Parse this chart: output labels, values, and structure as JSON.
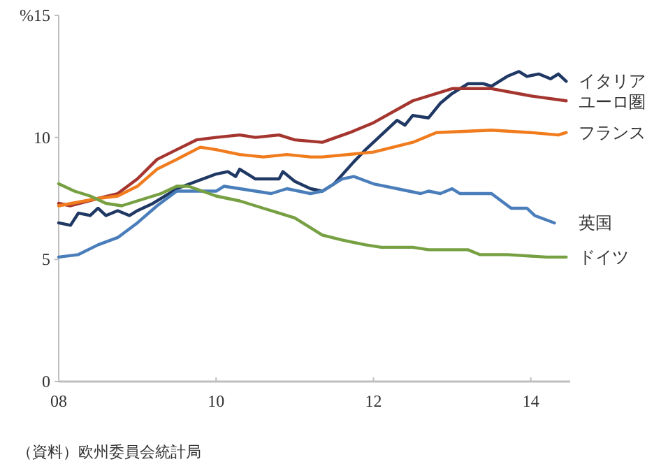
{
  "chart_data": {
    "type": "line",
    "xlim": [
      2008,
      2014.5
    ],
    "ylim": [
      0,
      15
    ],
    "xticks": [
      {
        "value": 2008,
        "label": "08"
      },
      {
        "value": 2010,
        "label": "10"
      },
      {
        "value": 2012,
        "label": "12"
      },
      {
        "value": 2014,
        "label": "14"
      }
    ],
    "yticks": [
      0,
      5,
      10,
      {
        "value": 15,
        "label": "%15"
      }
    ],
    "series": [
      {
        "name": "イタリア",
        "color": "#1f3864",
        "x": [
          2008,
          2008.15,
          2008.25,
          2008.4,
          2008.5,
          2008.6,
          2008.75,
          2008.9,
          2009.0,
          2009.2,
          2009.4,
          2009.5,
          2009.75,
          2010,
          2010.15,
          2010.25,
          2010.3,
          2010.5,
          2010.8,
          2010.85,
          2011,
          2011.2,
          2011.35,
          2011.5,
          2011.75,
          2011.9,
          2012.1,
          2012.3,
          2012.4,
          2012.5,
          2012.7,
          2012.85,
          2013,
          2013.2,
          2013.4,
          2013.5,
          2013.7,
          2013.85,
          2013.95,
          2014.1,
          2014.25,
          2014.35,
          2014.45
        ],
        "values": [
          6.5,
          6.4,
          6.9,
          6.8,
          7.1,
          6.8,
          7.0,
          6.8,
          7.0,
          7.3,
          7.7,
          7.9,
          8.2,
          8.5,
          8.6,
          8.4,
          8.7,
          8.3,
          8.3,
          8.6,
          8.2,
          7.9,
          7.8,
          8.1,
          9.0,
          9.5,
          10.1,
          10.7,
          10.5,
          10.9,
          10.8,
          11.4,
          11.8,
          12.2,
          12.2,
          12.1,
          12.5,
          12.7,
          12.5,
          12.6,
          12.4,
          12.6,
          12.3
        ]
      },
      {
        "name": "ユーロ圏",
        "color": "#a5352f",
        "x": [
          2008,
          2008.15,
          2008.5,
          2008.75,
          2009.0,
          2009.25,
          2009.5,
          2009.75,
          2010,
          2010.3,
          2010.5,
          2010.8,
          2011,
          2011.35,
          2011.7,
          2012,
          2012.5,
          2013,
          2013.5,
          2014,
          2014.45
        ],
        "values": [
          7.3,
          7.2,
          7.5,
          7.7,
          8.3,
          9.1,
          9.5,
          9.9,
          10.0,
          10.1,
          10.0,
          10.1,
          9.9,
          9.8,
          10.2,
          10.6,
          11.5,
          12.0,
          12.0,
          11.7,
          11.5
        ]
      },
      {
        "name": "フランス",
        "color": "#f07c1e",
        "x": [
          2008,
          2008.5,
          2008.75,
          2009.0,
          2009.25,
          2009.5,
          2009.8,
          2010,
          2010.3,
          2010.6,
          2010.9,
          2011.2,
          2011.35,
          2012,
          2012.5,
          2012.8,
          2013.5,
          2014,
          2014.35,
          2014.45
        ],
        "values": [
          7.2,
          7.5,
          7.6,
          8.0,
          8.7,
          9.1,
          9.6,
          9.5,
          9.3,
          9.2,
          9.3,
          9.2,
          9.2,
          9.4,
          9.8,
          10.2,
          10.3,
          10.2,
          10.1,
          10.2
        ]
      },
      {
        "name": "英国",
        "color": "#4a7ebb",
        "x": [
          2008,
          2008.25,
          2008.5,
          2008.75,
          2009,
          2009.25,
          2009.5,
          2009.75,
          2010,
          2010.1,
          2010.5,
          2010.7,
          2010.9,
          2011.2,
          2011.35,
          2011.6,
          2011.75,
          2012,
          2012.3,
          2012.6,
          2012.7,
          2012.85,
          2013,
          2013.1,
          2013.5,
          2013.75,
          2013.95,
          2014.05,
          2014.3
        ],
        "values": [
          5.1,
          5.2,
          5.6,
          5.9,
          6.5,
          7.2,
          7.8,
          7.8,
          7.8,
          8.0,
          7.8,
          7.7,
          7.9,
          7.7,
          7.8,
          8.3,
          8.4,
          8.1,
          7.9,
          7.7,
          7.8,
          7.7,
          7.9,
          7.7,
          7.7,
          7.1,
          7.1,
          6.8,
          6.5
        ]
      },
      {
        "name": "ドイツ",
        "color": "#77a043",
        "x": [
          2008,
          2008.2,
          2008.4,
          2008.6,
          2008.8,
          2009,
          2009.3,
          2009.5,
          2009.65,
          2010,
          2010.3,
          2010.6,
          2010.8,
          2011,
          2011.2,
          2011.35,
          2011.6,
          2011.9,
          2012.1,
          2012.5,
          2012.7,
          2013.2,
          2013.35,
          2013.7,
          2014.2,
          2014.3,
          2014.45
        ],
        "values": [
          8.1,
          7.8,
          7.6,
          7.3,
          7.2,
          7.4,
          7.7,
          8.0,
          8.0,
          7.6,
          7.4,
          7.1,
          6.9,
          6.7,
          6.3,
          6.0,
          5.8,
          5.6,
          5.5,
          5.5,
          5.4,
          5.4,
          5.2,
          5.2,
          5.1,
          5.1,
          5.1
        ]
      }
    ],
    "annotations": [
      "（資料）欧州委員会統計局"
    ]
  }
}
